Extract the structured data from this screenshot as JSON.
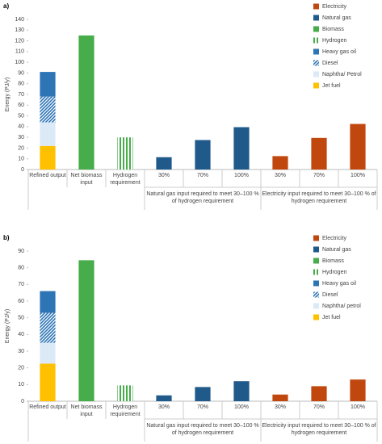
{
  "chart_data": [
    {
      "type": "stacked-bar",
      "panel_label": "a)",
      "y_label": "Energy (PJ/y)",
      "categories": [
        "Refined output",
        "Net biomass input",
        "Hydrogen requirement",
        "30%",
        "70%",
        "100%",
        "30%",
        "70%",
        "100%"
      ],
      "groups": [
        {
          "label": "Natural gas input required to meet 30–100 % of hydrogen requirement",
          "from": 3,
          "to": 5
        },
        {
          "label": "Electricity input required to meet 30–100 % of hydrogen requirement",
          "from": 6,
          "to": 8
        }
      ],
      "ylim": [
        0,
        140
      ],
      "yticks": [
        0,
        10,
        20,
        30,
        40,
        50,
        60,
        70,
        80,
        90,
        100,
        110,
        120,
        130,
        140
      ],
      "legend": "right",
      "series": [
        {
          "name": "Electricity",
          "color": "#c0480f",
          "values": [
            null,
            null,
            null,
            null,
            null,
            null,
            12.5,
            29.5,
            42.5
          ]
        },
        {
          "name": "Natural gas",
          "color": "#1f5a8a",
          "values": [
            null,
            null,
            null,
            11.5,
            27.5,
            39.5,
            null,
            null,
            null
          ]
        },
        {
          "name": "Biomass",
          "color": "#46ad4a",
          "values": [
            null,
            125,
            null,
            null,
            null,
            null,
            null,
            null,
            null
          ]
        },
        {
          "name": "Hydrogen",
          "color": "#46ad4a",
          "pattern": "vertical-stripes",
          "values": [
            null,
            null,
            30,
            null,
            null,
            null,
            null,
            null,
            null
          ]
        },
        {
          "name": "Heavy gas oil",
          "color": "#2e75b6",
          "values": [
            23,
            null,
            null,
            null,
            null,
            null,
            null,
            null,
            null
          ]
        },
        {
          "name": "Diesel",
          "color": "#2e75b6",
          "pattern": "diagonal-stripes",
          "values": [
            24,
            null,
            null,
            null,
            null,
            null,
            null,
            null,
            null
          ]
        },
        {
          "name": "Naphtha/ Petrol",
          "color": "#dce9f6",
          "values": [
            22,
            null,
            null,
            null,
            null,
            null,
            null,
            null,
            null
          ]
        },
        {
          "name": "Jet fuel",
          "color": "#ffc000",
          "values": [
            22,
            null,
            null,
            null,
            null,
            null,
            null,
            null,
            null
          ]
        }
      ]
    },
    {
      "type": "stacked-bar",
      "panel_label": "b)",
      "y_label": "Energy (PJ/y)",
      "categories": [
        "Refined output",
        "Net biomass input",
        "Hydrogen requirement",
        "30%",
        "70%",
        "100%",
        "30%",
        "70%",
        "100%"
      ],
      "groups": [
        {
          "label": "Natural gas input required to meet 30–100 % of hydrogen requirement",
          "from": 3,
          "to": 5
        },
        {
          "label": "Electricity input required to meet 30–100 % of hydrogen requirement",
          "from": 6,
          "to": 8
        }
      ],
      "ylim": [
        0,
        90
      ],
      "yticks": [
        0,
        10,
        20,
        30,
        40,
        50,
        60,
        70,
        80,
        90
      ],
      "legend": "right",
      "series": [
        {
          "name": "Electricity",
          "color": "#c0480f",
          "values": [
            null,
            null,
            null,
            null,
            null,
            null,
            4,
            9,
            13
          ]
        },
        {
          "name": "Natural gas",
          "color": "#1f5a8a",
          "values": [
            null,
            null,
            null,
            3.5,
            8.5,
            12,
            null,
            null,
            null
          ]
        },
        {
          "name": "Biomass",
          "color": "#46ad4a",
          "values": [
            null,
            84.5,
            null,
            null,
            null,
            null,
            null,
            null,
            null
          ]
        },
        {
          "name": "Hydrogen",
          "color": "#46ad4a",
          "pattern": "vertical-stripes",
          "values": [
            null,
            null,
            9.5,
            null,
            null,
            null,
            null,
            null,
            null
          ]
        },
        {
          "name": "Heavy gas oil",
          "color": "#2e75b6",
          "values": [
            13,
            null,
            null,
            null,
            null,
            null,
            null,
            null,
            null
          ]
        },
        {
          "name": "Diesel",
          "color": "#2e75b6",
          "pattern": "diagonal-stripes",
          "values": [
            18,
            null,
            null,
            null,
            null,
            null,
            null,
            null,
            null
          ]
        },
        {
          "name": "Naphtha/ petrol",
          "color": "#dce9f6",
          "values": [
            12.5,
            null,
            null,
            null,
            null,
            null,
            null,
            null,
            null
          ]
        },
        {
          "name": "Jet fuel",
          "color": "#ffc000",
          "values": [
            22.5,
            null,
            null,
            null,
            null,
            null,
            null,
            null,
            null
          ]
        }
      ]
    }
  ]
}
